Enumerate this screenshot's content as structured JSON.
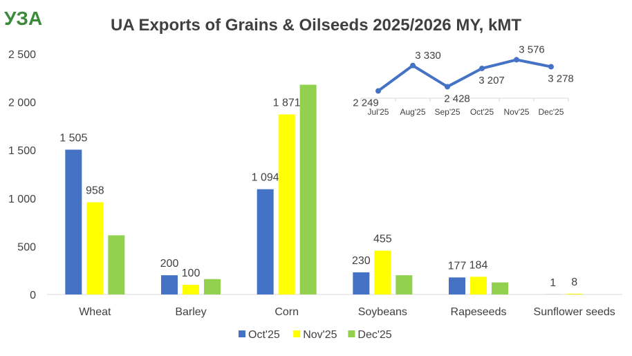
{
  "logo": {
    "text": "УЗА"
  },
  "chart_data": [
    {
      "type": "bar",
      "title": "UA Exports of Grains & Oilseeds 2025/2026 MY, kMT",
      "categories": [
        "Wheat",
        "Barley",
        "Corn",
        "Soybeans",
        "Rapeseeds",
        "Sunflower seeds"
      ],
      "yticks": [
        "0",
        "500",
        "1 000",
        "1 500",
        "2 000",
        "2 500"
      ],
      "ylim": [
        0,
        2500
      ],
      "grid": false,
      "legend": "bottom",
      "series": [
        {
          "name": "Oct'25",
          "color": "#4472c4",
          "values": [
            1505,
            200,
            1094,
            230,
            177,
            1
          ],
          "labels": [
            "1 505",
            "200",
            "1 094",
            "230",
            "177",
            "1"
          ]
        },
        {
          "name": "Nov'25",
          "color": "#ffff00",
          "values": [
            958,
            100,
            1871,
            455,
            184,
            8
          ],
          "labels": [
            "958",
            "100",
            "1 871",
            "455",
            "184",
            "8"
          ]
        },
        {
          "name": "Dec'25",
          "color": "#92d050",
          "values": [
            615,
            160,
            2180,
            200,
            125,
            0
          ],
          "labels": [
            "",
            "",
            "",
            "",
            "",
            ""
          ]
        }
      ]
    },
    {
      "type": "line",
      "categories": [
        "Jul'25",
        "Aug'25",
        "Sep'25",
        "Oct'25",
        "Nov'25",
        "Dec'25"
      ],
      "values": [
        2249,
        3330,
        2428,
        3207,
        3576,
        3278
      ],
      "labels": [
        "2 249",
        "3 330",
        "2 428",
        "3 207",
        "3 576",
        "3 278"
      ],
      "color": "#4472c4"
    }
  ]
}
